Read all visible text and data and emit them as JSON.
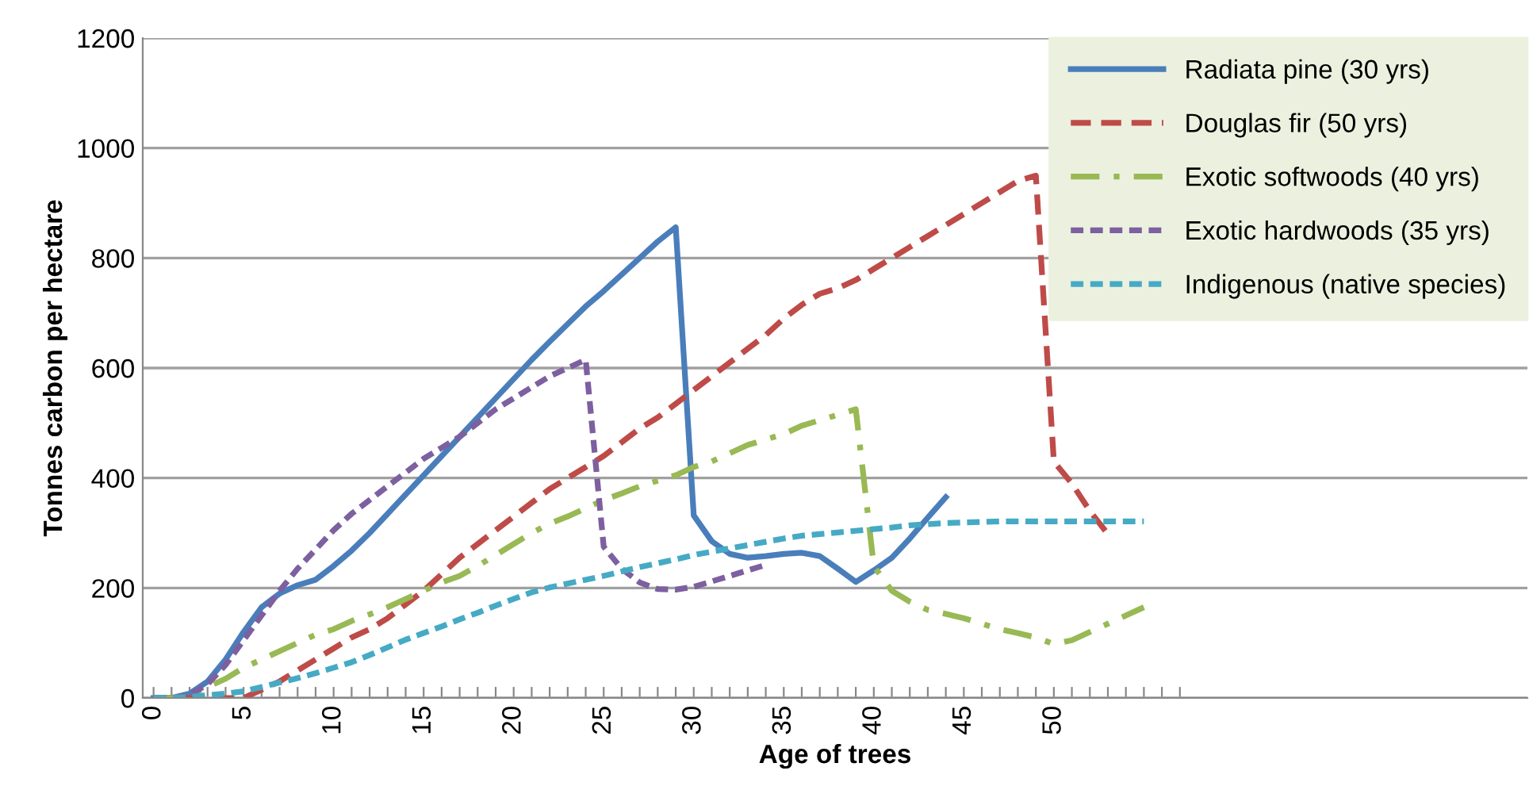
{
  "chart_data": {
    "type": "line",
    "xlabel": "Age of trees",
    "ylabel": "Tonnes carbon per hectare",
    "xlim": [
      -0.6,
      76.3
    ],
    "ylim": [
      0,
      1200
    ],
    "yticks": [
      0,
      200,
      400,
      600,
      800,
      1000,
      1200
    ],
    "xticks": [
      0,
      {
        "value": 1,
        "label": null
      },
      {
        "value": 2,
        "label": null
      },
      {
        "value": 3,
        "label": null
      },
      {
        "value": 4,
        "label": null
      },
      5,
      {
        "value": 6,
        "label": null
      },
      {
        "value": 7,
        "label": null
      },
      {
        "value": 8,
        "label": null
      },
      {
        "value": 9,
        "label": null
      },
      10,
      {
        "value": 11,
        "label": null
      },
      {
        "value": 12,
        "label": null
      },
      {
        "value": 13,
        "label": null
      },
      {
        "value": 14,
        "label": null
      },
      15,
      {
        "value": 16,
        "label": null
      },
      {
        "value": 17,
        "label": null
      },
      {
        "value": 18,
        "label": null
      },
      {
        "value": 19,
        "label": null
      },
      20,
      {
        "value": 21,
        "label": null
      },
      {
        "value": 22,
        "label": null
      },
      {
        "value": 23,
        "label": null
      },
      {
        "value": 24,
        "label": null
      },
      25,
      {
        "value": 26,
        "label": null
      },
      {
        "value": 27,
        "label": null
      },
      {
        "value": 28,
        "label": null
      },
      {
        "value": 29,
        "label": null
      },
      30,
      {
        "value": 31,
        "label": null
      },
      {
        "value": 32,
        "label": null
      },
      {
        "value": 33,
        "label": null
      },
      {
        "value": 34,
        "label": null
      },
      35,
      {
        "value": 36,
        "label": null
      },
      {
        "value": 37,
        "label": null
      },
      {
        "value": 38,
        "label": null
      },
      {
        "value": 39,
        "label": null
      },
      40,
      {
        "value": 41,
        "label": null
      },
      {
        "value": 42,
        "label": null
      },
      {
        "value": 43,
        "label": null
      },
      {
        "value": 44,
        "label": null
      },
      45,
      {
        "value": 46,
        "label": null
      },
      {
        "value": 47,
        "label": null
      },
      {
        "value": 48,
        "label": null
      },
      {
        "value": 49,
        "label": null
      },
      50,
      {
        "value": 51,
        "label": null
      },
      {
        "value": 52,
        "label": null
      },
      {
        "value": 53,
        "label": null
      },
      {
        "value": 54,
        "label": null
      },
      {
        "value": 55,
        "label": null
      },
      {
        "value": 56,
        "label": null
      },
      {
        "value": 57,
        "label": null
      }
    ],
    "grid": "y",
    "legend": "top right",
    "marker": "none",
    "series": [
      {
        "name": "Radiata pine (30 yrs)",
        "color": "#4a7ebb",
        "line_style": "solid",
        "x": [
          0,
          1,
          2,
          3,
          4,
          5,
          6,
          7,
          8,
          9,
          10,
          11,
          12,
          13,
          14,
          15,
          16,
          17,
          18,
          19,
          20,
          21,
          22,
          23,
          24,
          25,
          26,
          27,
          28,
          29,
          30,
          31,
          32,
          33,
          34,
          35,
          36,
          37,
          38,
          39,
          40,
          41,
          42,
          43,
          44
        ],
        "values": [
          0,
          0,
          8,
          30,
          70,
          120,
          165,
          190,
          205,
          215,
          240,
          268,
          300,
          335,
          370,
          405,
          440,
          475,
          510,
          545,
          580,
          615,
          648,
          680,
          712,
          740,
          770,
          800,
          830,
          856,
          332,
          285,
          262,
          255,
          258,
          262,
          264,
          258,
          235,
          211,
          232,
          255,
          290,
          328,
          365
        ]
      },
      {
        "name": "Douglas fir (50 yrs)",
        "color": "#be4b48",
        "line_style": "dashed",
        "x": [
          0,
          1,
          2,
          3,
          4,
          5,
          6,
          7,
          8,
          9,
          10,
          11,
          12,
          13,
          14,
          15,
          16,
          17,
          18,
          19,
          20,
          21,
          22,
          23,
          24,
          25,
          26,
          27,
          28,
          29,
          30,
          31,
          32,
          33,
          34,
          35,
          36,
          37,
          38,
          39,
          40,
          41,
          42,
          43,
          44,
          45,
          46,
          47,
          48,
          49,
          50,
          51,
          52,
          53
        ],
        "values": [
          0,
          0,
          0,
          0,
          0,
          0,
          15,
          30,
          50,
          70,
          90,
          110,
          125,
          145,
          170,
          195,
          225,
          255,
          280,
          305,
          330,
          355,
          380,
          400,
          420,
          440,
          465,
          490,
          510,
          535,
          560,
          585,
          610,
          635,
          660,
          690,
          715,
          735,
          745,
          760,
          780,
          800,
          820,
          840,
          860,
          880,
          900,
          920,
          940,
          950,
          430,
          390,
          340,
          298
        ]
      },
      {
        "name": "Exotic softwoods (40 yrs)",
        "color": "#98b954",
        "line_style": "dashdot",
        "x": [
          0,
          1,
          2,
          3,
          4,
          5,
          6,
          7,
          8,
          9,
          10,
          11,
          12,
          13,
          14,
          15,
          16,
          17,
          18,
          19,
          20,
          21,
          22,
          23,
          24,
          25,
          26,
          27,
          28,
          29,
          30,
          31,
          32,
          33,
          34,
          35,
          36,
          37,
          38,
          39,
          40,
          41,
          42,
          43,
          44,
          45,
          46,
          47,
          48,
          49,
          50,
          51,
          52,
          53,
          54,
          55
        ],
        "values": [
          0,
          0,
          5,
          20,
          35,
          55,
          70,
          85,
          100,
          115,
          125,
          140,
          152,
          165,
          180,
          195,
          210,
          222,
          240,
          260,
          280,
          300,
          317,
          330,
          345,
          360,
          372,
          385,
          395,
          405,
          420,
          430,
          445,
          460,
          470,
          480,
          495,
          505,
          515,
          525,
          240,
          195,
          175,
          160,
          153,
          145,
          135,
          125,
          118,
          110,
          98,
          105,
          120,
          135,
          150,
          165
        ]
      },
      {
        "name": "Exotic hardwoods (35 yrs)",
        "color": "#7d60a0",
        "line_style": "dotted",
        "x": [
          0,
          1,
          2,
          3,
          4,
          5,
          6,
          7,
          8,
          9,
          10,
          11,
          12,
          13,
          14,
          15,
          16,
          17,
          18,
          19,
          20,
          21,
          22,
          23,
          24,
          25,
          26,
          27,
          28,
          29,
          30,
          31,
          32,
          33,
          34
        ],
        "values": [
          0,
          0,
          5,
          25,
          60,
          105,
          150,
          195,
          235,
          270,
          305,
          335,
          360,
          385,
          410,
          435,
          455,
          475,
          500,
          525,
          545,
          565,
          585,
          600,
          615,
          275,
          235,
          210,
          198,
          197,
          202,
          212,
          222,
          232,
          242
        ]
      },
      {
        "name": "Indigenous (native species)",
        "color": "#46aac5",
        "line_style": "dotted",
        "x": [
          0,
          1,
          2,
          3,
          4,
          5,
          6,
          7,
          8,
          9,
          10,
          11,
          12,
          13,
          14,
          15,
          16,
          17,
          18,
          19,
          20,
          21,
          22,
          23,
          24,
          25,
          26,
          27,
          28,
          29,
          30,
          31,
          32,
          33,
          34,
          35,
          36,
          37,
          38,
          39,
          40,
          41,
          42,
          43,
          44,
          45,
          46,
          47,
          48,
          49,
          50,
          51,
          52,
          53,
          54,
          55
        ],
        "values": [
          0,
          0,
          2,
          5,
          8,
          12,
          20,
          28,
          36,
          45,
          55,
          65,
          78,
          92,
          106,
          118,
          130,
          143,
          155,
          168,
          180,
          192,
          201,
          208,
          215,
          222,
          230,
          238,
          245,
          252,
          260,
          266,
          272,
          278,
          284,
          290,
          295,
          298,
          301,
          304,
          307,
          310,
          314,
          316,
          318,
          319,
          320,
          321,
          321,
          321,
          321,
          321,
          321,
          321,
          321,
          321
        ]
      }
    ]
  }
}
